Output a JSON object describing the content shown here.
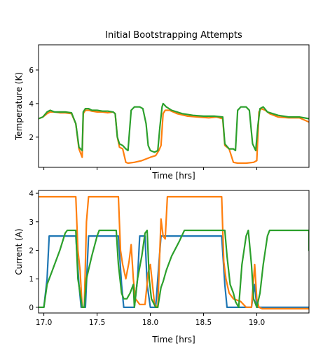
{
  "title": "Initial Bootstrapping Attempts",
  "chart_data": [
    {
      "type": "line",
      "xlabel": "Time [hrs]",
      "ylabel": "Temperature (K)",
      "xlim": [
        16.95,
        19.49
      ],
      "ylim": [
        0.2,
        7.5
      ],
      "xticks": [
        17.0,
        17.5,
        18.0,
        18.5,
        19.0
      ],
      "show_xtick_labels": false,
      "yticks": [
        2,
        4,
        6
      ],
      "grid": false,
      "series": [
        {
          "color": "#ff7f0e",
          "points": [
            [
              16.95,
              3.1
            ],
            [
              16.99,
              3.2
            ],
            [
              17.03,
              3.4
            ],
            [
              17.06,
              3.5
            ],
            [
              17.1,
              3.5
            ],
            [
              17.15,
              3.45
            ],
            [
              17.2,
              3.45
            ],
            [
              17.26,
              3.4
            ],
            [
              17.3,
              2.8
            ],
            [
              17.33,
              1.3
            ],
            [
              17.36,
              0.8
            ],
            [
              17.37,
              3.4
            ],
            [
              17.39,
              3.6
            ],
            [
              17.42,
              3.6
            ],
            [
              17.45,
              3.55
            ],
            [
              17.5,
              3.5
            ],
            [
              17.55,
              3.5
            ],
            [
              17.6,
              3.45
            ],
            [
              17.65,
              3.5
            ],
            [
              17.67,
              3.4
            ],
            [
              17.69,
              2.0
            ],
            [
              17.71,
              1.4
            ],
            [
              17.74,
              1.3
            ],
            [
              17.77,
              0.5
            ],
            [
              17.79,
              0.45
            ],
            [
              17.85,
              0.5
            ],
            [
              17.92,
              0.6
            ],
            [
              18.0,
              0.8
            ],
            [
              18.05,
              0.9
            ],
            [
              18.08,
              1.2
            ],
            [
              18.1,
              1.5
            ],
            [
              18.12,
              3.4
            ],
            [
              18.14,
              3.6
            ],
            [
              18.18,
              3.6
            ],
            [
              18.25,
              3.4
            ],
            [
              18.35,
              3.25
            ],
            [
              18.45,
              3.2
            ],
            [
              18.55,
              3.15
            ],
            [
              18.62,
              3.2
            ],
            [
              18.68,
              3.1
            ],
            [
              18.7,
              1.5
            ],
            [
              18.74,
              1.3
            ],
            [
              18.78,
              0.5
            ],
            [
              18.82,
              0.45
            ],
            [
              18.9,
              0.45
            ],
            [
              18.97,
              0.5
            ],
            [
              19.0,
              0.6
            ],
            [
              19.02,
              3.5
            ],
            [
              19.04,
              3.7
            ],
            [
              19.08,
              3.6
            ],
            [
              19.12,
              3.4
            ],
            [
              19.2,
              3.2
            ],
            [
              19.3,
              3.15
            ],
            [
              19.4,
              3.15
            ],
            [
              19.49,
              2.9
            ]
          ]
        },
        {
          "color": "#2ca02c",
          "points": [
            [
              16.95,
              3.1
            ],
            [
              16.99,
              3.2
            ],
            [
              17.03,
              3.5
            ],
            [
              17.06,
              3.6
            ],
            [
              17.1,
              3.5
            ],
            [
              17.15,
              3.5
            ],
            [
              17.2,
              3.5
            ],
            [
              17.26,
              3.45
            ],
            [
              17.3,
              2.8
            ],
            [
              17.33,
              1.4
            ],
            [
              17.36,
              1.2
            ],
            [
              17.37,
              3.5
            ],
            [
              17.39,
              3.7
            ],
            [
              17.42,
              3.7
            ],
            [
              17.45,
              3.6
            ],
            [
              17.5,
              3.6
            ],
            [
              17.55,
              3.55
            ],
            [
              17.6,
              3.55
            ],
            [
              17.65,
              3.5
            ],
            [
              17.67,
              3.4
            ],
            [
              17.69,
              2.0
            ],
            [
              17.71,
              1.6
            ],
            [
              17.74,
              1.5
            ],
            [
              17.77,
              1.3
            ],
            [
              17.79,
              1.2
            ],
            [
              17.82,
              3.6
            ],
            [
              17.85,
              3.8
            ],
            [
              17.9,
              3.8
            ],
            [
              17.93,
              3.7
            ],
            [
              17.96,
              2.8
            ],
            [
              17.98,
              1.5
            ],
            [
              18.0,
              1.2
            ],
            [
              18.04,
              1.1
            ],
            [
              18.07,
              1.2
            ],
            [
              18.09,
              2.6
            ],
            [
              18.11,
              3.8
            ],
            [
              18.12,
              4.0
            ],
            [
              18.15,
              3.8
            ],
            [
              18.2,
              3.6
            ],
            [
              18.3,
              3.4
            ],
            [
              18.4,
              3.3
            ],
            [
              18.5,
              3.25
            ],
            [
              18.6,
              3.25
            ],
            [
              18.68,
              3.2
            ],
            [
              18.7,
              1.6
            ],
            [
              18.74,
              1.3
            ],
            [
              18.78,
              1.3
            ],
            [
              18.8,
              1.2
            ],
            [
              18.82,
              3.6
            ],
            [
              18.85,
              3.8
            ],
            [
              18.9,
              3.8
            ],
            [
              18.93,
              3.6
            ],
            [
              18.96,
              1.6
            ],
            [
              18.99,
              1.2
            ],
            [
              19.01,
              2.7
            ],
            [
              19.03,
              3.7
            ],
            [
              19.06,
              3.8
            ],
            [
              19.1,
              3.5
            ],
            [
              19.2,
              3.3
            ],
            [
              19.3,
              3.2
            ],
            [
              19.4,
              3.2
            ],
            [
              19.49,
              3.1
            ]
          ]
        }
      ]
    },
    {
      "type": "line",
      "xlabel": "Time [hrs]",
      "ylabel": "Current (A)",
      "xlim": [
        16.95,
        19.49
      ],
      "ylim": [
        -0.2,
        4.1
      ],
      "xticks": [
        17.0,
        17.5,
        18.0,
        18.5,
        19.0
      ],
      "xtick_labels": [
        "17.0",
        "17.5",
        "18.0",
        "18.5",
        "19.0"
      ],
      "yticks": [
        0,
        1,
        2,
        3,
        4
      ],
      "grid": false,
      "series": [
        {
          "color": "#1f77b4",
          "points": [
            [
              17.0,
              0.0
            ],
            [
              17.03,
              1.0
            ],
            [
              17.05,
              2.5
            ],
            [
              17.3,
              2.5
            ],
            [
              17.33,
              0.8
            ],
            [
              17.35,
              0.0
            ],
            [
              17.39,
              0.0
            ],
            [
              17.42,
              2.5
            ],
            [
              17.7,
              2.5
            ],
            [
              17.73,
              0.8
            ],
            [
              17.75,
              0.0
            ],
            [
              17.85,
              0.0
            ],
            [
              17.88,
              1.0
            ],
            [
              17.9,
              2.5
            ],
            [
              17.95,
              2.5
            ],
            [
              17.97,
              0.8
            ],
            [
              18.0,
              0.0
            ],
            [
              18.05,
              0.0
            ],
            [
              18.08,
              1.5
            ],
            [
              18.1,
              2.5
            ],
            [
              18.67,
              2.5
            ],
            [
              18.7,
              0.8
            ],
            [
              18.72,
              0.0
            ],
            [
              18.95,
              0.0
            ],
            [
              18.98,
              0.8
            ],
            [
              19.0,
              0.0
            ],
            [
              19.49,
              0.0
            ]
          ]
        },
        {
          "color": "#ff7f0e",
          "points": [
            [
              16.95,
              3.88
            ],
            [
              17.3,
              3.88
            ],
            [
              17.32,
              2.0
            ],
            [
              17.34,
              1.3
            ],
            [
              17.36,
              0.0
            ],
            [
              17.38,
              0.0
            ],
            [
              17.4,
              3.0
            ],
            [
              17.42,
              3.88
            ],
            [
              17.7,
              3.88
            ],
            [
              17.72,
              2.0
            ],
            [
              17.74,
              1.5
            ],
            [
              17.77,
              1.0
            ],
            [
              17.8,
              1.6
            ],
            [
              17.82,
              2.2
            ],
            [
              17.84,
              1.0
            ],
            [
              17.86,
              0.3
            ],
            [
              17.9,
              0.1
            ],
            [
              17.95,
              0.1
            ],
            [
              17.98,
              1.2
            ],
            [
              18.0,
              1.5
            ],
            [
              18.02,
              0.8
            ],
            [
              18.04,
              0.1
            ],
            [
              18.07,
              0.0
            ],
            [
              18.1,
              3.1
            ],
            [
              18.12,
              2.5
            ],
            [
              18.14,
              2.4
            ],
            [
              18.16,
              3.88
            ],
            [
              18.67,
              3.88
            ],
            [
              18.69,
              1.6
            ],
            [
              18.71,
              1.0
            ],
            [
              18.74,
              0.5
            ],
            [
              18.78,
              0.3
            ],
            [
              18.85,
              0.2
            ],
            [
              18.9,
              0.0
            ],
            [
              18.95,
              0.0
            ],
            [
              18.98,
              1.5
            ],
            [
              19.0,
              0.3
            ],
            [
              19.02,
              0.0
            ],
            [
              19.05,
              -0.05
            ],
            [
              19.49,
              -0.05
            ]
          ]
        },
        {
          "color": "#2ca02c",
          "points": [
            [
              16.95,
              0.0
            ],
            [
              17.0,
              0.0
            ],
            [
              17.03,
              0.8
            ],
            [
              17.08,
              1.3
            ],
            [
              17.15,
              2.0
            ],
            [
              17.2,
              2.6
            ],
            [
              17.22,
              2.7
            ],
            [
              17.3,
              2.7
            ],
            [
              17.32,
              1.0
            ],
            [
              17.34,
              0.5
            ],
            [
              17.36,
              0.0
            ],
            [
              17.38,
              0.0
            ],
            [
              17.4,
              1.0
            ],
            [
              17.45,
              1.8
            ],
            [
              17.5,
              2.5
            ],
            [
              17.52,
              2.7
            ],
            [
              17.68,
              2.7
            ],
            [
              17.7,
              1.5
            ],
            [
              17.73,
              0.5
            ],
            [
              17.75,
              0.3
            ],
            [
              17.78,
              0.3
            ],
            [
              17.81,
              0.5
            ],
            [
              17.84,
              0.8
            ],
            [
              17.85,
              0.0
            ],
            [
              17.88,
              1.0
            ],
            [
              17.92,
              1.8
            ],
            [
              17.95,
              2.6
            ],
            [
              17.97,
              2.7
            ],
            [
              17.99,
              1.0
            ],
            [
              18.01,
              0.3
            ],
            [
              18.05,
              0.0
            ],
            [
              18.07,
              0.0
            ],
            [
              18.1,
              0.7
            ],
            [
              18.12,
              0.9
            ],
            [
              18.15,
              1.3
            ],
            [
              18.2,
              1.8
            ],
            [
              18.27,
              2.3
            ],
            [
              18.32,
              2.7
            ],
            [
              18.7,
              2.7
            ],
            [
              18.72,
              1.8
            ],
            [
              18.75,
              0.8
            ],
            [
              18.78,
              0.5
            ],
            [
              18.8,
              0.2
            ],
            [
              18.83,
              0.0
            ],
            [
              18.86,
              1.5
            ],
            [
              18.9,
              2.5
            ],
            [
              18.92,
              2.7
            ],
            [
              18.95,
              1.5
            ],
            [
              18.97,
              0.3
            ],
            [
              19.0,
              0.0
            ],
            [
              19.03,
              0.5
            ],
            [
              19.06,
              1.5
            ],
            [
              19.1,
              2.5
            ],
            [
              19.12,
              2.7
            ],
            [
              19.49,
              2.7
            ],
            [
              19.49,
              2.0
            ]
          ]
        }
      ]
    }
  ]
}
